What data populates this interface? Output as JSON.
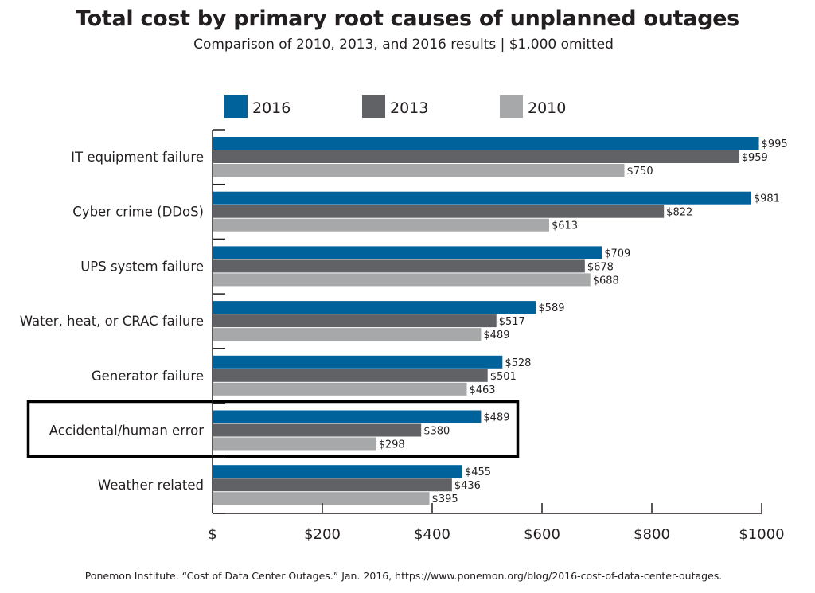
{
  "header": {
    "title": "Total cost by primary root causes of unplanned outages",
    "subtitle": "Comparison of 2010, 2013, and 2016 results  |  $1,000 omitted"
  },
  "footer": {
    "source": "Ponemon Institute. “Cost of Data Center Outages.” Jan. 2016, https://www.ponemon.org/blog/2016-cost-of-data-center-outages."
  },
  "chart_data": {
    "type": "bar",
    "orientation": "horizontal",
    "title": "Total cost by primary root causes of unplanned outages",
    "subtitle": "Comparison of 2010, 2013, and 2016 results  |  $1,000 omitted",
    "categories": [
      "IT equipment failure",
      "Cyber crime (DDoS)",
      "UPS system failure",
      "Water, heat, or CRAC failure",
      "Generator failure",
      "Accidental/human error",
      "Weather related"
    ],
    "series": [
      {
        "name": "2016",
        "color": "#00629b",
        "values": [
          995,
          981,
          709,
          589,
          528,
          489,
          455
        ]
      },
      {
        "name": "2013",
        "color": "#616265",
        "values": [
          959,
          822,
          678,
          517,
          501,
          380,
          436
        ]
      },
      {
        "name": "2010",
        "color": "#a7a8aa",
        "values": [
          750,
          613,
          688,
          489,
          463,
          298,
          395
        ]
      }
    ],
    "data_labels": [
      [
        "$995",
        "$959",
        "$750"
      ],
      [
        "$981",
        "$822",
        "$613"
      ],
      [
        "$709",
        "$678",
        "$688"
      ],
      [
        "$589",
        "$517",
        "$489"
      ],
      [
        "$528",
        "$501",
        "$463"
      ],
      [
        "$489",
        "$380",
        "$298"
      ],
      [
        "$455",
        "$436",
        "$395"
      ]
    ],
    "xlim": [
      0,
      1000
    ],
    "x_ticks": [
      0,
      200,
      400,
      600,
      800,
      1000
    ],
    "x_tick_labels": [
      "$",
      "$200",
      "$400",
      "$600",
      "$800",
      "$1000"
    ],
    "xlabel": "",
    "ylabel": "",
    "grid": false,
    "legend": "top",
    "highlighted_category": "Accidental/human error"
  }
}
